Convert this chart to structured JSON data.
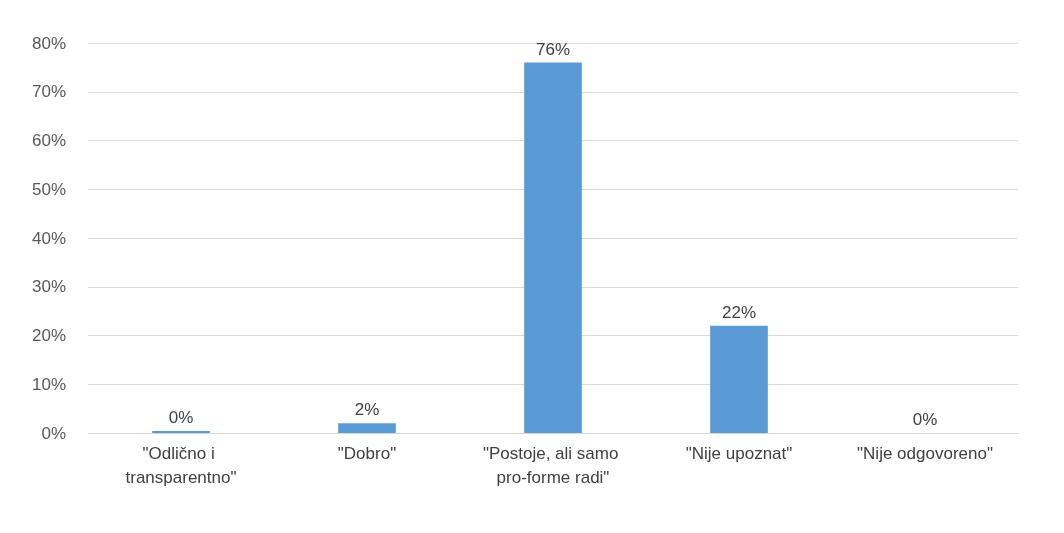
{
  "chart_data": {
    "type": "bar",
    "categories": [
      "\"Odlično i transparentno\"",
      "\"Dobro\"",
      "\"Postoje, ali samo pro-forme radi\"",
      "\"Nije upoznat\"",
      "\"Nije odgovoreno\""
    ],
    "values": [
      0.4,
      2,
      76,
      22,
      0
    ],
    "value_labels": [
      "0%",
      "2%",
      "76%",
      "22%",
      "0%"
    ],
    "color": "#5b9bd5",
    "ylim": [
      0,
      80
    ],
    "yticks": [
      {
        "value": 0,
        "label": "0%"
      },
      {
        "value": 10,
        "label": "10%"
      },
      {
        "value": 20,
        "label": "20%"
      },
      {
        "value": 30,
        "label": "30%"
      },
      {
        "value": 40,
        "label": "40%"
      },
      {
        "value": 50,
        "label": "50%"
      },
      {
        "value": 60,
        "label": "60%"
      },
      {
        "value": 70,
        "label": "70%"
      },
      {
        "value": 80,
        "label": "80%"
      }
    ],
    "grid": "y"
  }
}
